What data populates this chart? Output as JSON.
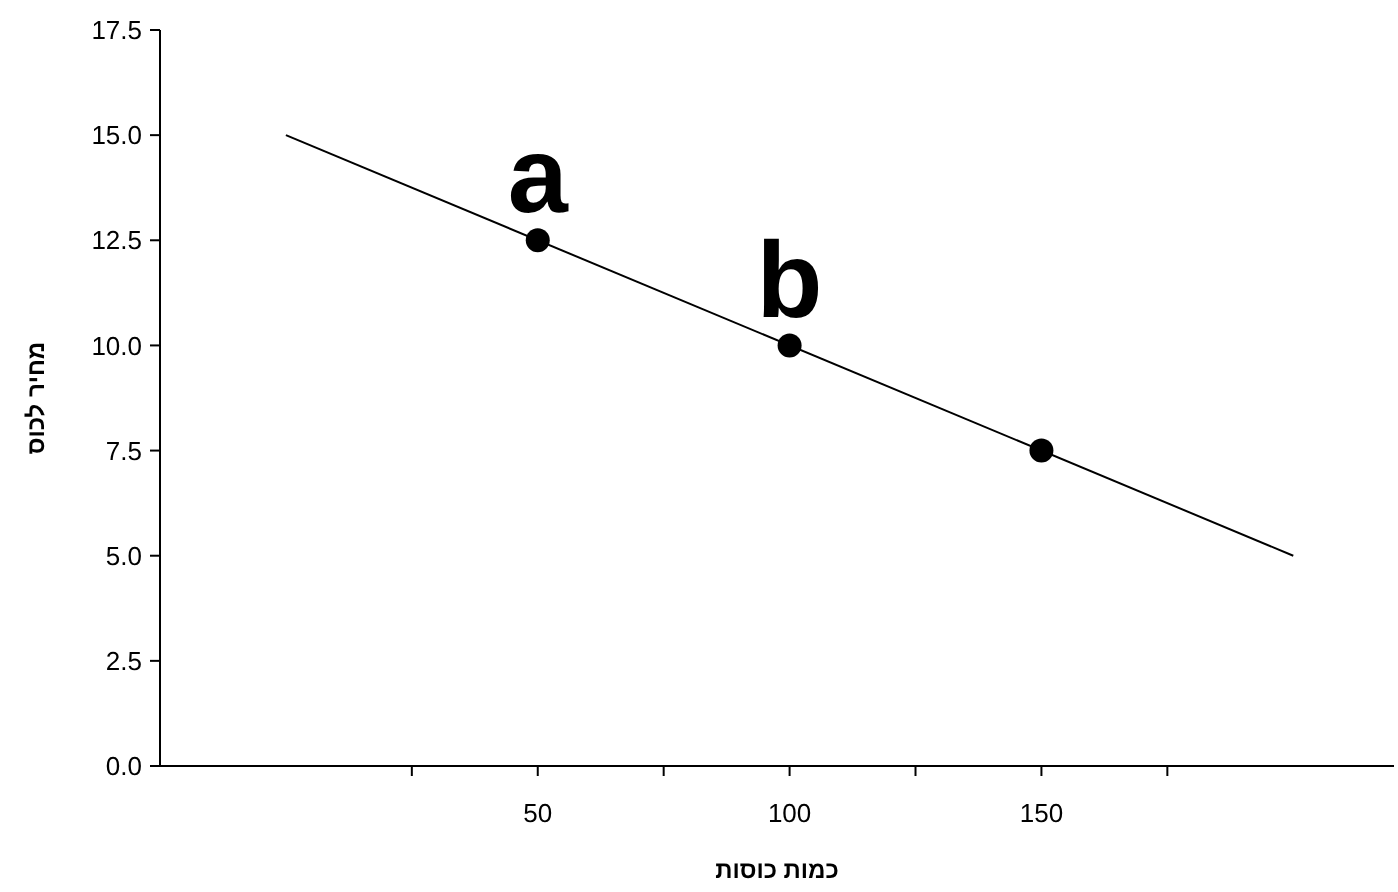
{
  "chart_data": {
    "type": "line",
    "xlabel": "כמות כוסות",
    "ylabel": "מחיר לכוס",
    "xlim": [
      -25,
      220
    ],
    "xticks": [
      {
        "value": 25,
        "label": null
      },
      {
        "value": 50,
        "label": "50"
      },
      {
        "value": 75,
        "label": null
      },
      {
        "value": 100,
        "label": "100"
      },
      {
        "value": 125,
        "label": null
      },
      {
        "value": 150,
        "label": "150"
      },
      {
        "value": 175,
        "label": null
      }
    ],
    "ylim": [
      0,
      17.5
    ],
    "yticks": [
      {
        "value": 0,
        "label": "0.0"
      },
      {
        "value": 2.5,
        "label": "2.5"
      },
      {
        "value": 5,
        "label": "5.0"
      },
      {
        "value": 7.5,
        "label": "7.5"
      },
      {
        "value": 10,
        "label": "10.0"
      },
      {
        "value": 12.5,
        "label": "12.5"
      },
      {
        "value": 15,
        "label": "15.0"
      },
      {
        "value": 17.5,
        "label": "17.5"
      }
    ],
    "grid": false,
    "series": [
      {
        "type": "line",
        "color": "#000000",
        "x": [
          0,
          200
        ],
        "values": [
          15,
          5
        ],
        "marker": "none"
      },
      {
        "type": "scatter",
        "color": "#000000",
        "x": [
          50,
          100,
          150
        ],
        "values": [
          12.5,
          10,
          7.5
        ],
        "marker": "circle"
      }
    ],
    "annotations": [
      "a",
      "b"
    ]
  }
}
